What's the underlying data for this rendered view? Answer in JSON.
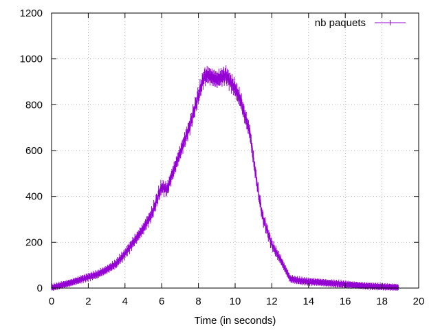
{
  "chart_data": {
    "type": "line",
    "title": "",
    "xlabel": "Time (in seconds)",
    "ylabel": "",
    "xlim": [
      0,
      20
    ],
    "ylim": [
      0,
      1200
    ],
    "xticks": [
      0,
      2,
      4,
      6,
      8,
      10,
      12,
      14,
      16,
      18,
      20
    ],
    "yticks": [
      0,
      200,
      400,
      600,
      800,
      1000,
      1200
    ],
    "xtick_labels": [
      "0",
      "2",
      "4",
      "6",
      "8",
      "10",
      "12",
      "14",
      "16",
      "18",
      "20"
    ],
    "ytick_labels": [
      "0",
      "200",
      "400",
      "600",
      "800",
      "1000",
      "1200"
    ],
    "grid": true,
    "legend_position": "top-right",
    "series": [
      {
        "name": "nb paquets",
        "color": "#9400d3",
        "marker": "vertical-tick",
        "x": [
          0,
          0.5,
          1,
          1.5,
          2,
          2.5,
          3,
          3.5,
          4,
          4.5,
          5,
          5.3,
          5.5,
          5.8,
          6,
          6.3,
          6.5,
          7,
          7.5,
          8,
          8.3,
          8.5,
          9,
          9.5,
          10,
          10.3,
          10.5,
          10.8,
          11,
          11.3,
          11.5,
          12,
          12.5,
          13,
          13.5,
          14,
          14.5,
          15,
          16,
          17,
          18,
          18.9
        ],
        "values": [
          2,
          12,
          22,
          35,
          48,
          60,
          80,
          105,
          150,
          205,
          260,
          300,
          330,
          400,
          440,
          430,
          480,
          590,
          700,
          840,
          920,
          930,
          910,
          930,
          870,
          820,
          760,
          680,
          560,
          400,
          310,
          190,
          120,
          40,
          32,
          28,
          26,
          22,
          16,
          10,
          6,
          3
        ],
        "spread": 14
      }
    ]
  }
}
